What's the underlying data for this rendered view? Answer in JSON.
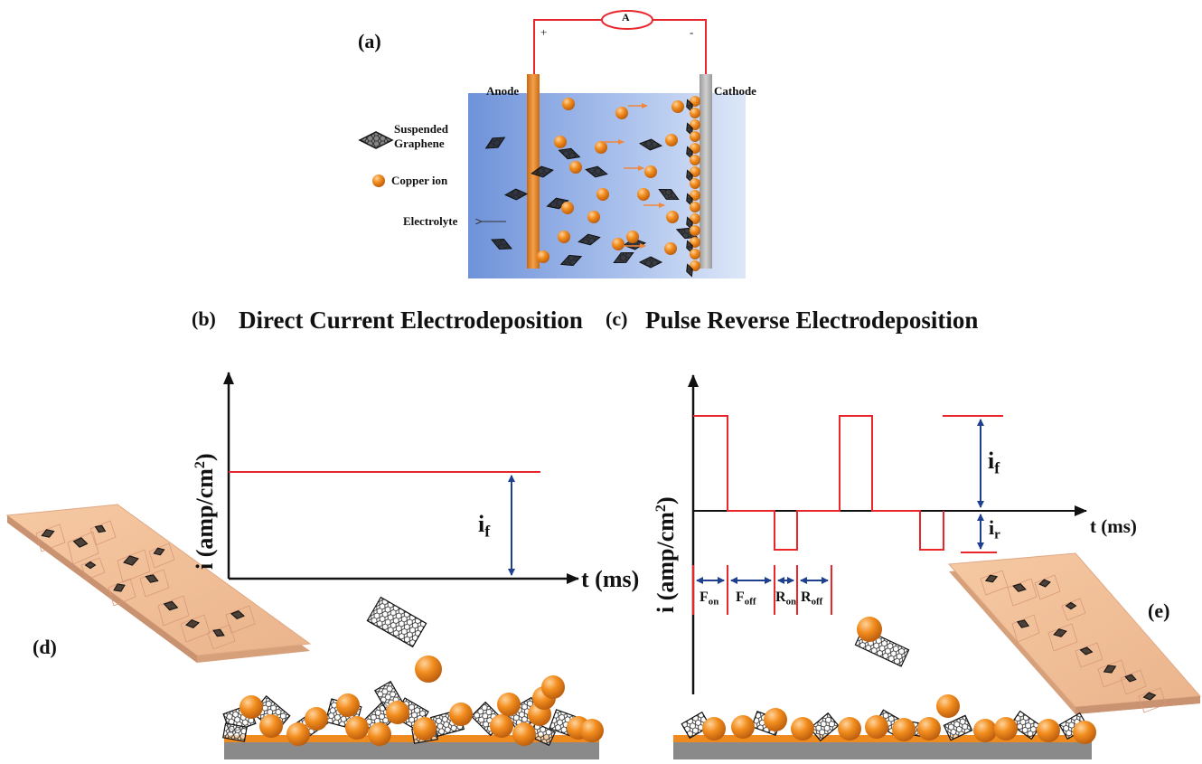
{
  "panel_a": {
    "letter": "(a)",
    "ammeter": "A",
    "plus": "+",
    "minus": "-",
    "anode": "Anode",
    "cathode": "Cathode",
    "legend_graphene_line1": "Suspended",
    "legend_graphene_line2": "Graphene",
    "legend_copper": "Copper ion",
    "legend_electrolyte": "Electrolyte"
  },
  "panel_b": {
    "letter": "(b)",
    "title": "Direct Current Electrodeposition",
    "y_axis": "i (amp/cm",
    "y_axis_sup": "2",
    "y_axis_close": ")",
    "x_axis": "t (ms)",
    "i_main": "i",
    "i_sub": "f"
  },
  "panel_c": {
    "letter": "(c)",
    "title": "Pulse Reverse Electrodeposition",
    "y_axis": "i (amp/cm",
    "y_axis_sup": "2",
    "y_axis_close": ")",
    "x_axis": "t (ms)",
    "if_main": "i",
    "if_sub": "f",
    "ir_main": "i",
    "ir_sub": "r",
    "f_on_main": "F",
    "f_on_sub": "on",
    "f_off_main": "F",
    "f_off_sub": "off",
    "r_on_main": "R",
    "r_on_sub": "on",
    "r_off_main": "R",
    "r_off_sub": "off"
  },
  "panel_d": {
    "letter": "(d)"
  },
  "panel_e": {
    "letter": "(e)"
  },
  "colors": {
    "copper": "#ef8a1f",
    "signal_red": "#e8262b",
    "arrow_blue": "#1f3f8f",
    "electrolyte_blue": "#6f93da",
    "substrate_gray": "#8a8a8a"
  }
}
